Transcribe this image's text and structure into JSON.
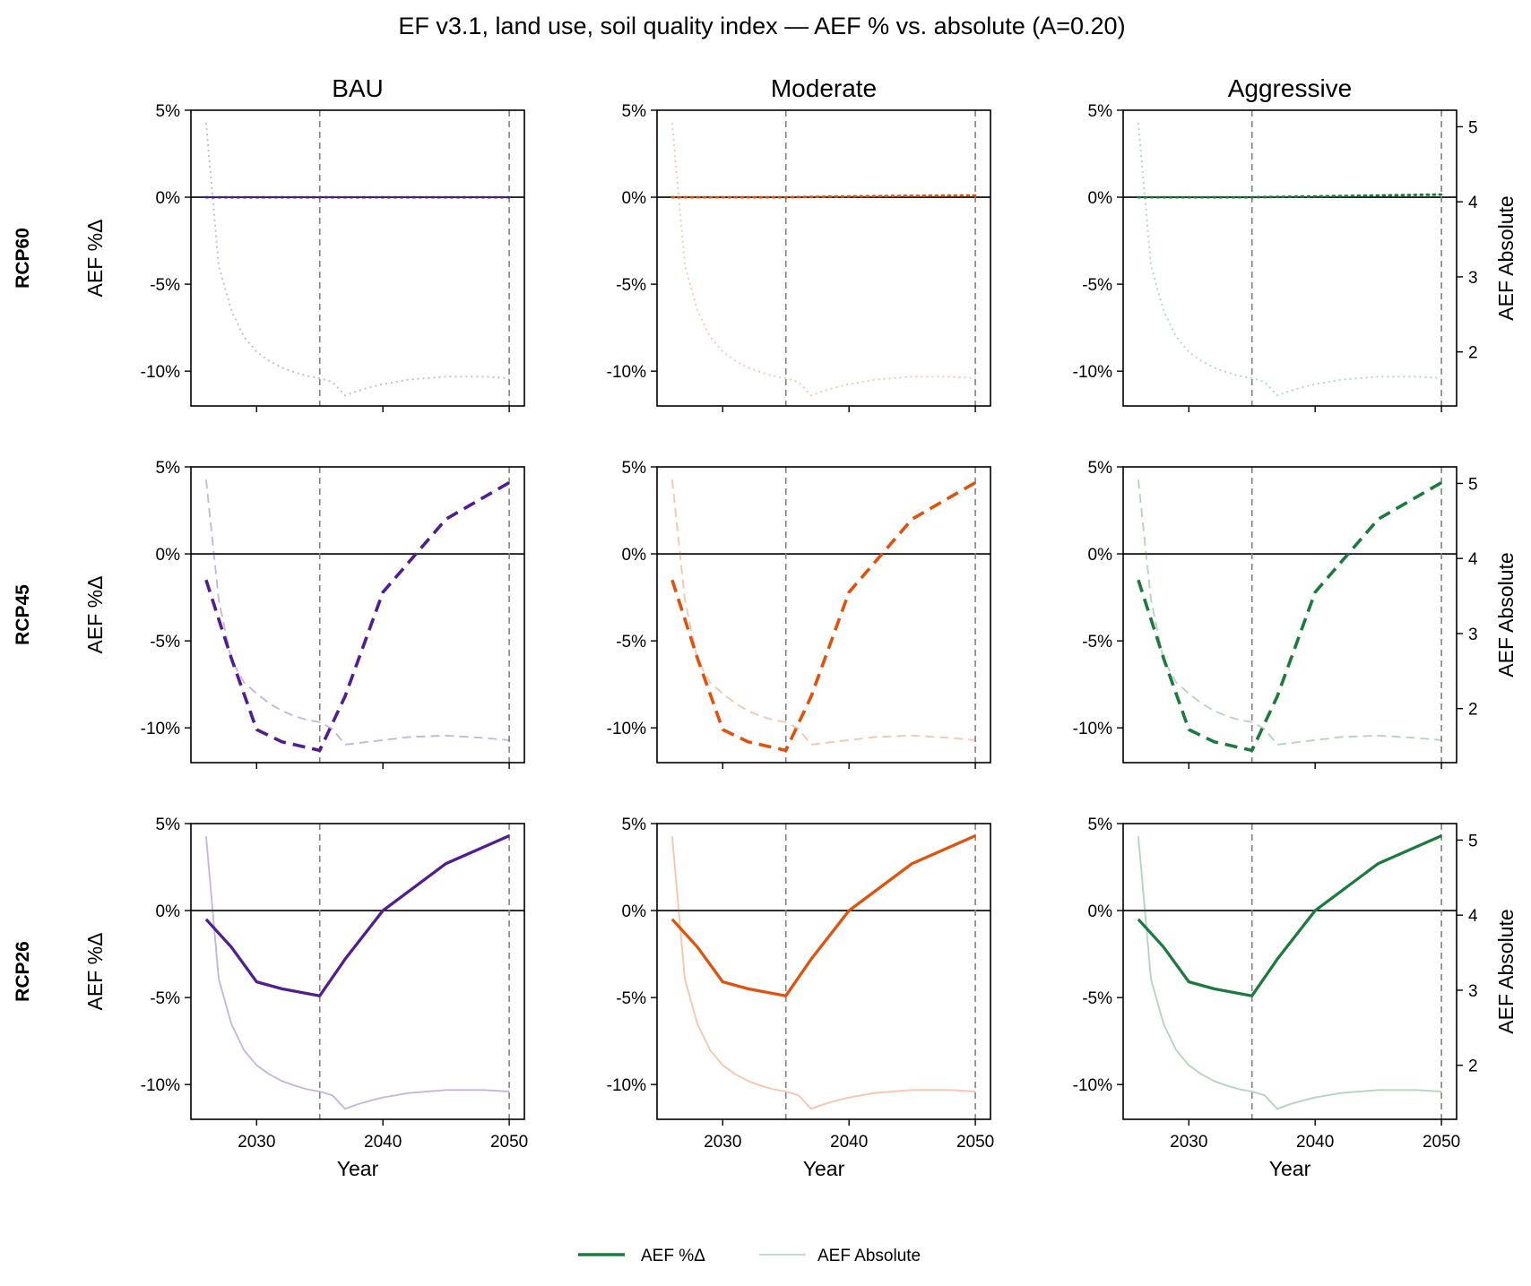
{
  "title": "EF v3.1, land use, soil quality index  —  AEF % vs. absolute (A=0.20)",
  "columns": [
    "BAU",
    "Moderate",
    "Aggressive"
  ],
  "rows": [
    "RCP60",
    "RCP45",
    "RCP26"
  ],
  "colors": {
    "BAU": "#4f1f8f",
    "Moderate": "#e0520c",
    "Aggressive": "#1d7a3e",
    "reference_line": "#808080",
    "zero_line": "#000000"
  },
  "legend": {
    "pct_label": "AEF %Δ",
    "abs_label": "AEF Absolute",
    "color": "#1d7a3e"
  },
  "chart_data": {
    "type": "line",
    "xlabel": "Year",
    "ylabel_left": "AEF %Δ",
    "ylabel_right": "AEF Absolute",
    "xlim": [
      2024.8,
      2051.2
    ],
    "xticks": [
      2030,
      2040,
      2050
    ],
    "xtick_labels": [
      "2030",
      "2040",
      "2050"
    ],
    "ylim_pct": [
      -12,
      5
    ],
    "yticks_pct": [
      5,
      0,
      -5,
      -10
    ],
    "ytick_labels_pct": [
      "5%",
      "0%",
      "-5%",
      "-10%"
    ],
    "ylim_abs": [
      1.28,
      5.22
    ],
    "yticks_abs": [
      5,
      4,
      3,
      2
    ],
    "ytick_labels_abs": [
      "5",
      "4",
      "3",
      "2"
    ],
    "reference_years": [
      2035,
      2050
    ],
    "line_styles": {
      "RCP60": "dotted",
      "RCP45": "dashed",
      "RCP26": "solid"
    },
    "panels": {
      "RCP60": {
        "pct": {
          "x": [
            2026,
            2030,
            2035,
            2040,
            2045,
            2050
          ],
          "BAU": [
            0.0,
            0.0,
            0.0,
            0.0,
            0.0,
            0.0
          ],
          "Moderate": [
            0.0,
            0.0,
            0.0,
            0.05,
            0.08,
            0.1
          ],
          "Aggressive": [
            0.0,
            0.0,
            0.0,
            0.05,
            0.1,
            0.15
          ]
        },
        "abs": {
          "x": [
            2026,
            2027,
            2028,
            2029,
            2030,
            2031,
            2032,
            2033,
            2034,
            2035,
            2036,
            2037,
            2038,
            2039,
            2040,
            2042,
            2045,
            2048,
            2050
          ],
          "y": [
            5.05,
            3.15,
            2.55,
            2.2,
            2.0,
            1.88,
            1.79,
            1.73,
            1.68,
            1.65,
            1.6,
            1.42,
            1.48,
            1.53,
            1.57,
            1.63,
            1.67,
            1.67,
            1.65
          ]
        }
      },
      "RCP45": {
        "pct": {
          "x": [
            2026,
            2028,
            2030,
            2032,
            2035,
            2037,
            2040,
            2045,
            2050
          ],
          "BAU": [
            -1.5,
            -6.0,
            -10.1,
            -10.8,
            -11.3,
            -8.2,
            -2.2,
            2.0,
            4.1
          ],
          "Moderate": [
            -1.5,
            -6.0,
            -10.1,
            -10.8,
            -11.3,
            -8.2,
            -2.2,
            2.0,
            4.1
          ],
          "Aggressive": [
            -1.5,
            -6.0,
            -10.1,
            -10.8,
            -11.3,
            -8.2,
            -2.2,
            2.0,
            4.1
          ]
        },
        "abs": {
          "x": [
            2026,
            2027,
            2028,
            2029,
            2030,
            2031,
            2032,
            2033,
            2034,
            2035,
            2036,
            2037,
            2038,
            2039,
            2040,
            2042,
            2045,
            2048,
            2050
          ],
          "y": [
            5.05,
            3.45,
            2.65,
            2.35,
            2.2,
            2.07,
            1.97,
            1.9,
            1.85,
            1.82,
            1.73,
            1.52,
            1.54,
            1.56,
            1.58,
            1.62,
            1.64,
            1.61,
            1.58
          ]
        }
      },
      "RCP26": {
        "pct": {
          "x": [
            2026,
            2028,
            2030,
            2032,
            2035,
            2037,
            2040,
            2045,
            2050
          ],
          "BAU": [
            -0.5,
            -2.1,
            -4.1,
            -4.5,
            -4.9,
            -2.8,
            0.0,
            2.7,
            4.3
          ],
          "Moderate": [
            -0.5,
            -2.1,
            -4.1,
            -4.5,
            -4.9,
            -2.8,
            0.0,
            2.7,
            4.3
          ],
          "Aggressive": [
            -0.5,
            -2.1,
            -4.1,
            -4.5,
            -4.9,
            -2.8,
            0.0,
            2.7,
            4.3
          ]
        },
        "abs": {
          "x": [
            2026,
            2027,
            2028,
            2029,
            2030,
            2031,
            2032,
            2033,
            2034,
            2035,
            2036,
            2037,
            2038,
            2039,
            2040,
            2042,
            2045,
            2048,
            2050
          ],
          "y": [
            5.05,
            3.15,
            2.55,
            2.2,
            2.0,
            1.88,
            1.79,
            1.73,
            1.68,
            1.65,
            1.6,
            1.42,
            1.48,
            1.53,
            1.57,
            1.63,
            1.67,
            1.67,
            1.65
          ]
        }
      }
    }
  }
}
